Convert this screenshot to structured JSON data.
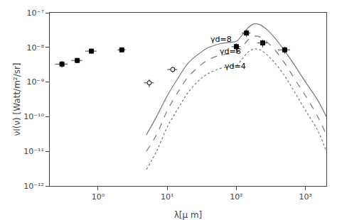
{
  "chart_data": {
    "type": "line",
    "xlabel": "λ[μ m]",
    "ylabel": "νI(ν) [Watt/m²/sr]",
    "log": true,
    "grid": false,
    "xlim": [
      0.2,
      2000
    ],
    "ylim": [
      1e-12,
      1e-07
    ],
    "xticks": [
      {
        "value": 1,
        "label": "10⁰"
      },
      {
        "value": 10,
        "label": "10¹"
      },
      {
        "value": 100,
        "label": "10²"
      },
      {
        "value": 1000,
        "label": "10³"
      }
    ],
    "yticks": [
      {
        "value": 1e-12,
        "label": "10⁻¹²"
      },
      {
        "value": 1e-11,
        "label": "10⁻¹¹"
      },
      {
        "value": 1e-10,
        "label": "10⁻¹⁰"
      },
      {
        "value": 1e-09,
        "label": "10⁻⁹"
      },
      {
        "value": 1e-08,
        "label": "10⁻⁸"
      },
      {
        "value": 1e-07,
        "label": "10⁻⁷"
      }
    ],
    "series": [
      {
        "type": "line",
        "color": "#777777",
        "line_style": "solid",
        "x": [
          5,
          7,
          10,
          15,
          20,
          30,
          40,
          60,
          80,
          100,
          120,
          150,
          180,
          220,
          280,
          350,
          500,
          700,
          1000,
          1500,
          2000
        ],
        "values": [
          3e-11,
          1e-10,
          4e-10,
          1.5e-09,
          3.5e-09,
          7e-09,
          1e-08,
          1.3e-08,
          1.4e-08,
          1.5e-08,
          2.2e-08,
          3.8e-08,
          4.8e-08,
          4.5e-08,
          3.2e-08,
          2e-08,
          8e-09,
          3e-09,
          1e-09,
          3e-10,
          1e-10
        ]
      },
      {
        "type": "line",
        "color": "#777777",
        "line_style": "dashed",
        "x": [
          5,
          7,
          10,
          15,
          20,
          30,
          40,
          60,
          80,
          100,
          120,
          150,
          180,
          220,
          280,
          350,
          500,
          700,
          1000,
          1500,
          2000
        ],
        "values": [
          1e-11,
          3e-11,
          1.5e-10,
          6e-10,
          1.4e-09,
          3e-09,
          4.5e-09,
          6e-09,
          6.5e-09,
          7e-09,
          1e-08,
          1.7e-08,
          2.1e-08,
          2e-08,
          1.4e-08,
          9e-09,
          3.5e-09,
          1.2e-09,
          4e-10,
          1e-10,
          3e-11
        ]
      },
      {
        "type": "line",
        "color": "#777777",
        "line_style": "dotted",
        "x": [
          5,
          7,
          10,
          15,
          20,
          30,
          40,
          60,
          80,
          100,
          120,
          150,
          180,
          220,
          280,
          350,
          500,
          700,
          1000,
          1500,
          2000
        ],
        "values": [
          3e-12,
          1e-11,
          5e-11,
          2e-10,
          5e-10,
          1.2e-09,
          1.8e-09,
          2.5e-09,
          2.8e-09,
          3e-09,
          4.5e-09,
          7.5e-09,
          9e-09,
          8.5e-09,
          6e-09,
          3.8e-09,
          1.5e-09,
          5e-10,
          1.5e-10,
          4e-11,
          1e-11
        ]
      },
      {
        "type": "scatter",
        "color": "#000000",
        "marker": "square",
        "x": [
          0.3,
          0.5,
          0.8,
          2.2,
          100,
          140,
          240,
          500
        ],
        "values": [
          3.3e-09,
          4.2e-09,
          7.8e-09,
          8.5e-09,
          1.05e-08,
          2.6e-08,
          1.35e-08,
          8.5e-09
        ],
        "xerr": [
          0.06,
          0.09,
          0.15,
          0.3,
          15,
          20,
          40,
          100
        ],
        "yerr": [
          7e-10,
          7e-10,
          1.2e-09,
          1e-09,
          2.5e-09,
          6e-09,
          3.5e-09,
          2e-09
        ]
      },
      {
        "type": "scatter",
        "color": "#000000",
        "marker": "open circle",
        "x": [
          5.5,
          12
        ],
        "values": [
          9.5e-10,
          2.3e-09
        ],
        "xerr": [
          0.9,
          2.0
        ],
        "yerr": [
          2.5e-10,
          4e-10
        ]
      }
    ],
    "annotations": [
      {
        "text": "γd=8",
        "x": 40,
        "y": 1.7e-08
      },
      {
        "text": "γd=6",
        "x": 55,
        "y": 7.5e-09
      },
      {
        "text": "γd=4",
        "x": 65,
        "y": 2.8e-09
      }
    ]
  }
}
